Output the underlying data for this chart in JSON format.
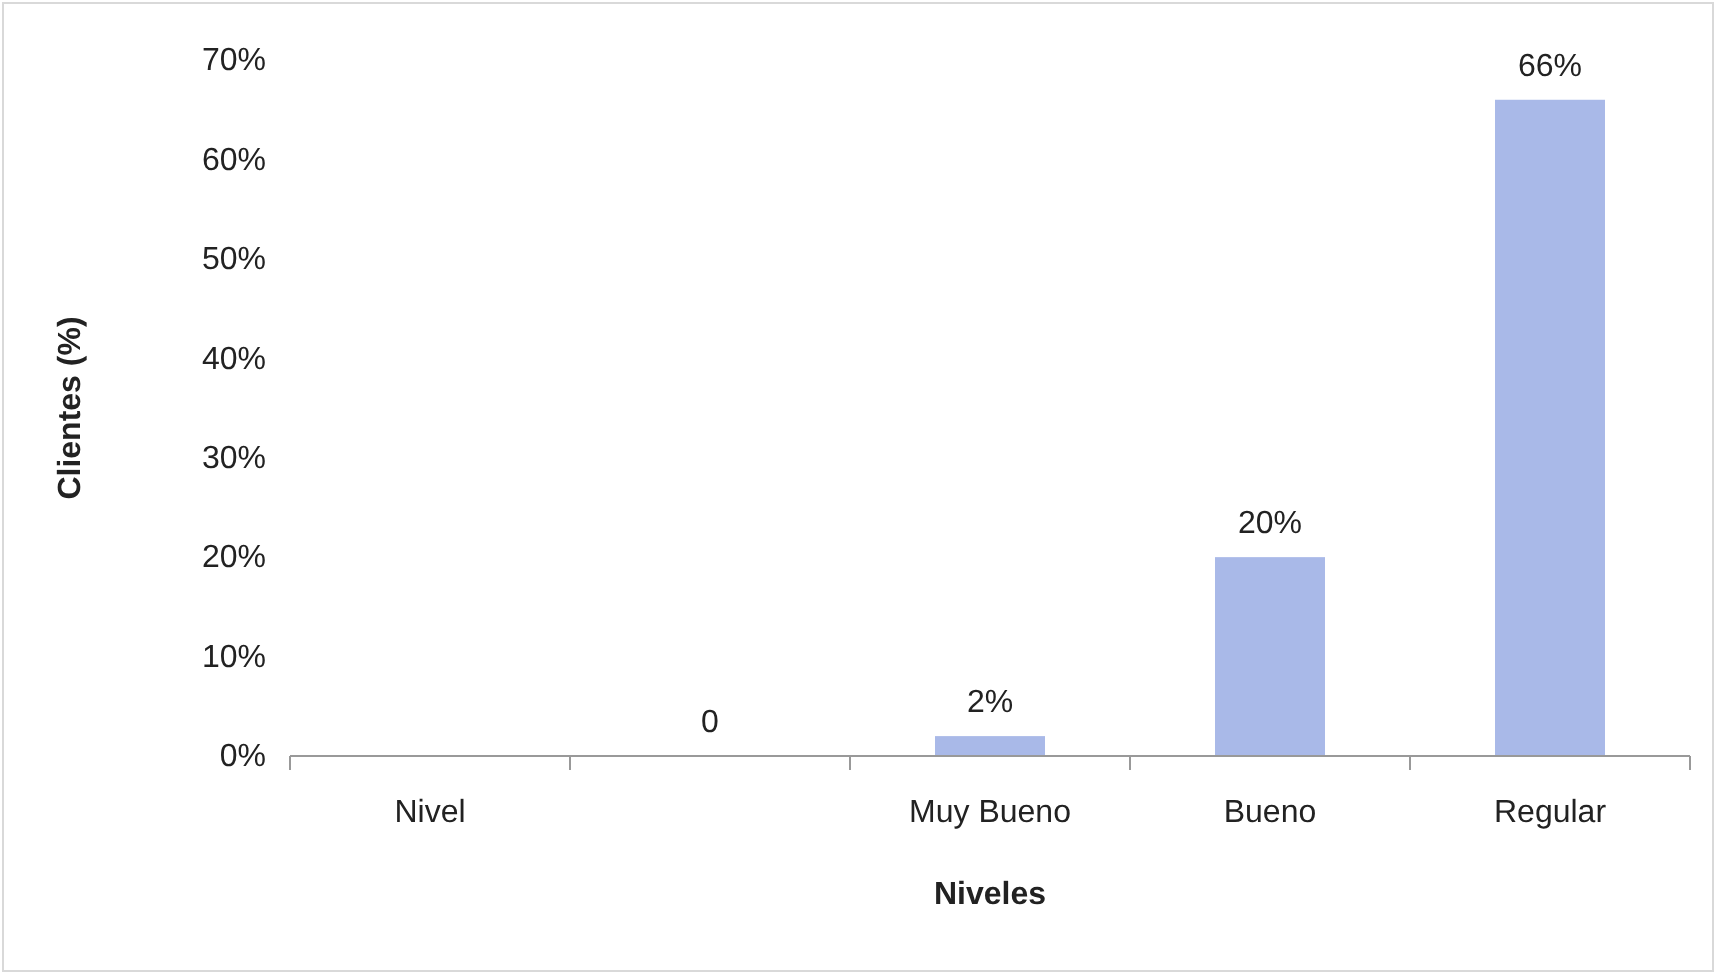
{
  "chart_data": {
    "type": "bar",
    "xlabel": "Niveles",
    "ylabel": "Clientes (%)",
    "categories": [
      "Nivel",
      null,
      "Muy Bueno",
      "Bueno",
      "Regular"
    ],
    "values": [
      null,
      0,
      2,
      20,
      66
    ],
    "value_labels": [
      null,
      "0",
      "2%",
      "20%",
      "66%"
    ],
    "color": "#a9b9e8",
    "ylim": [
      0,
      70
    ],
    "yticks": [
      {
        "value": 0,
        "label": "0%"
      },
      {
        "value": 10,
        "label": "10%"
      },
      {
        "value": 20,
        "label": "20%"
      },
      {
        "value": 30,
        "label": "30%"
      },
      {
        "value": 40,
        "label": "40%"
      },
      {
        "value": 50,
        "label": "50%"
      },
      {
        "value": 60,
        "label": "60%"
      },
      {
        "value": 70,
        "label": "70%"
      }
    ],
    "grid": false
  }
}
